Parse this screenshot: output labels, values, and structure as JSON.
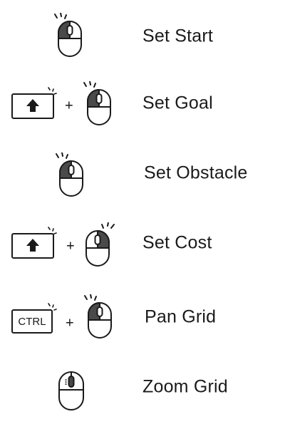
{
  "controls": [
    {
      "label": "Set Start",
      "mouse_icon": "mouse-left-click-icon"
    },
    {
      "label": "Set Goal",
      "key": "shift",
      "key_icon": "shift-arrow-up-icon",
      "plus": "+",
      "mouse_icon": "mouse-left-click-icon"
    },
    {
      "label": "Set Obstacle",
      "mouse_icon": "mouse-left-click-icon"
    },
    {
      "label": "Set Cost",
      "key": "shift",
      "key_icon": "shift-arrow-up-icon",
      "plus": "+",
      "mouse_icon": "mouse-right-click-icon"
    },
    {
      "label": "Pan Grid",
      "key": "CTRL",
      "plus": "+",
      "mouse_icon": "mouse-left-click-icon"
    },
    {
      "label": "Zoom Grid",
      "mouse_icon": "mouse-scroll-wheel-icon"
    }
  ],
  "colors": {
    "text": "#1a1a1a",
    "button_fill": "#4a4a4a",
    "background": "#ffffff"
  }
}
